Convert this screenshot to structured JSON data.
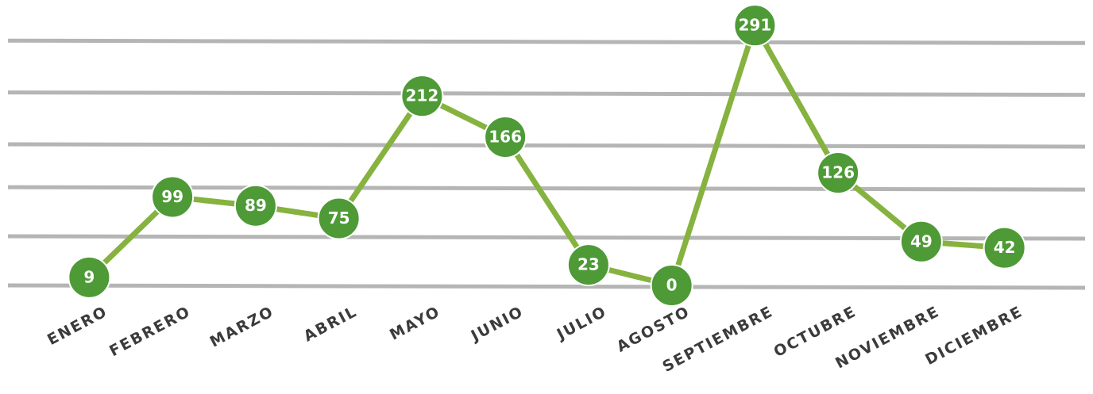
{
  "chart_data": {
    "type": "line",
    "categories": [
      "ENERO",
      "FEBRERO",
      "MARZO",
      "ABRIL",
      "MAYO",
      "JUNIO",
      "JULIO",
      "AGOSTO",
      "SEPTIEMBRE",
      "OCTUBRE",
      "NOVIEMBRE",
      "DICIEMBRE"
    ],
    "values": [
      9,
      99,
      89,
      75,
      212,
      166,
      23,
      0,
      291,
      126,
      49,
      42
    ],
    "color": "#86b23f",
    "marker_color": "#4e9a36",
    "ylim": [
      0,
      300
    ],
    "yticks": [
      0,
      55,
      110,
      158,
      216,
      274
    ],
    "grid": true
  }
}
